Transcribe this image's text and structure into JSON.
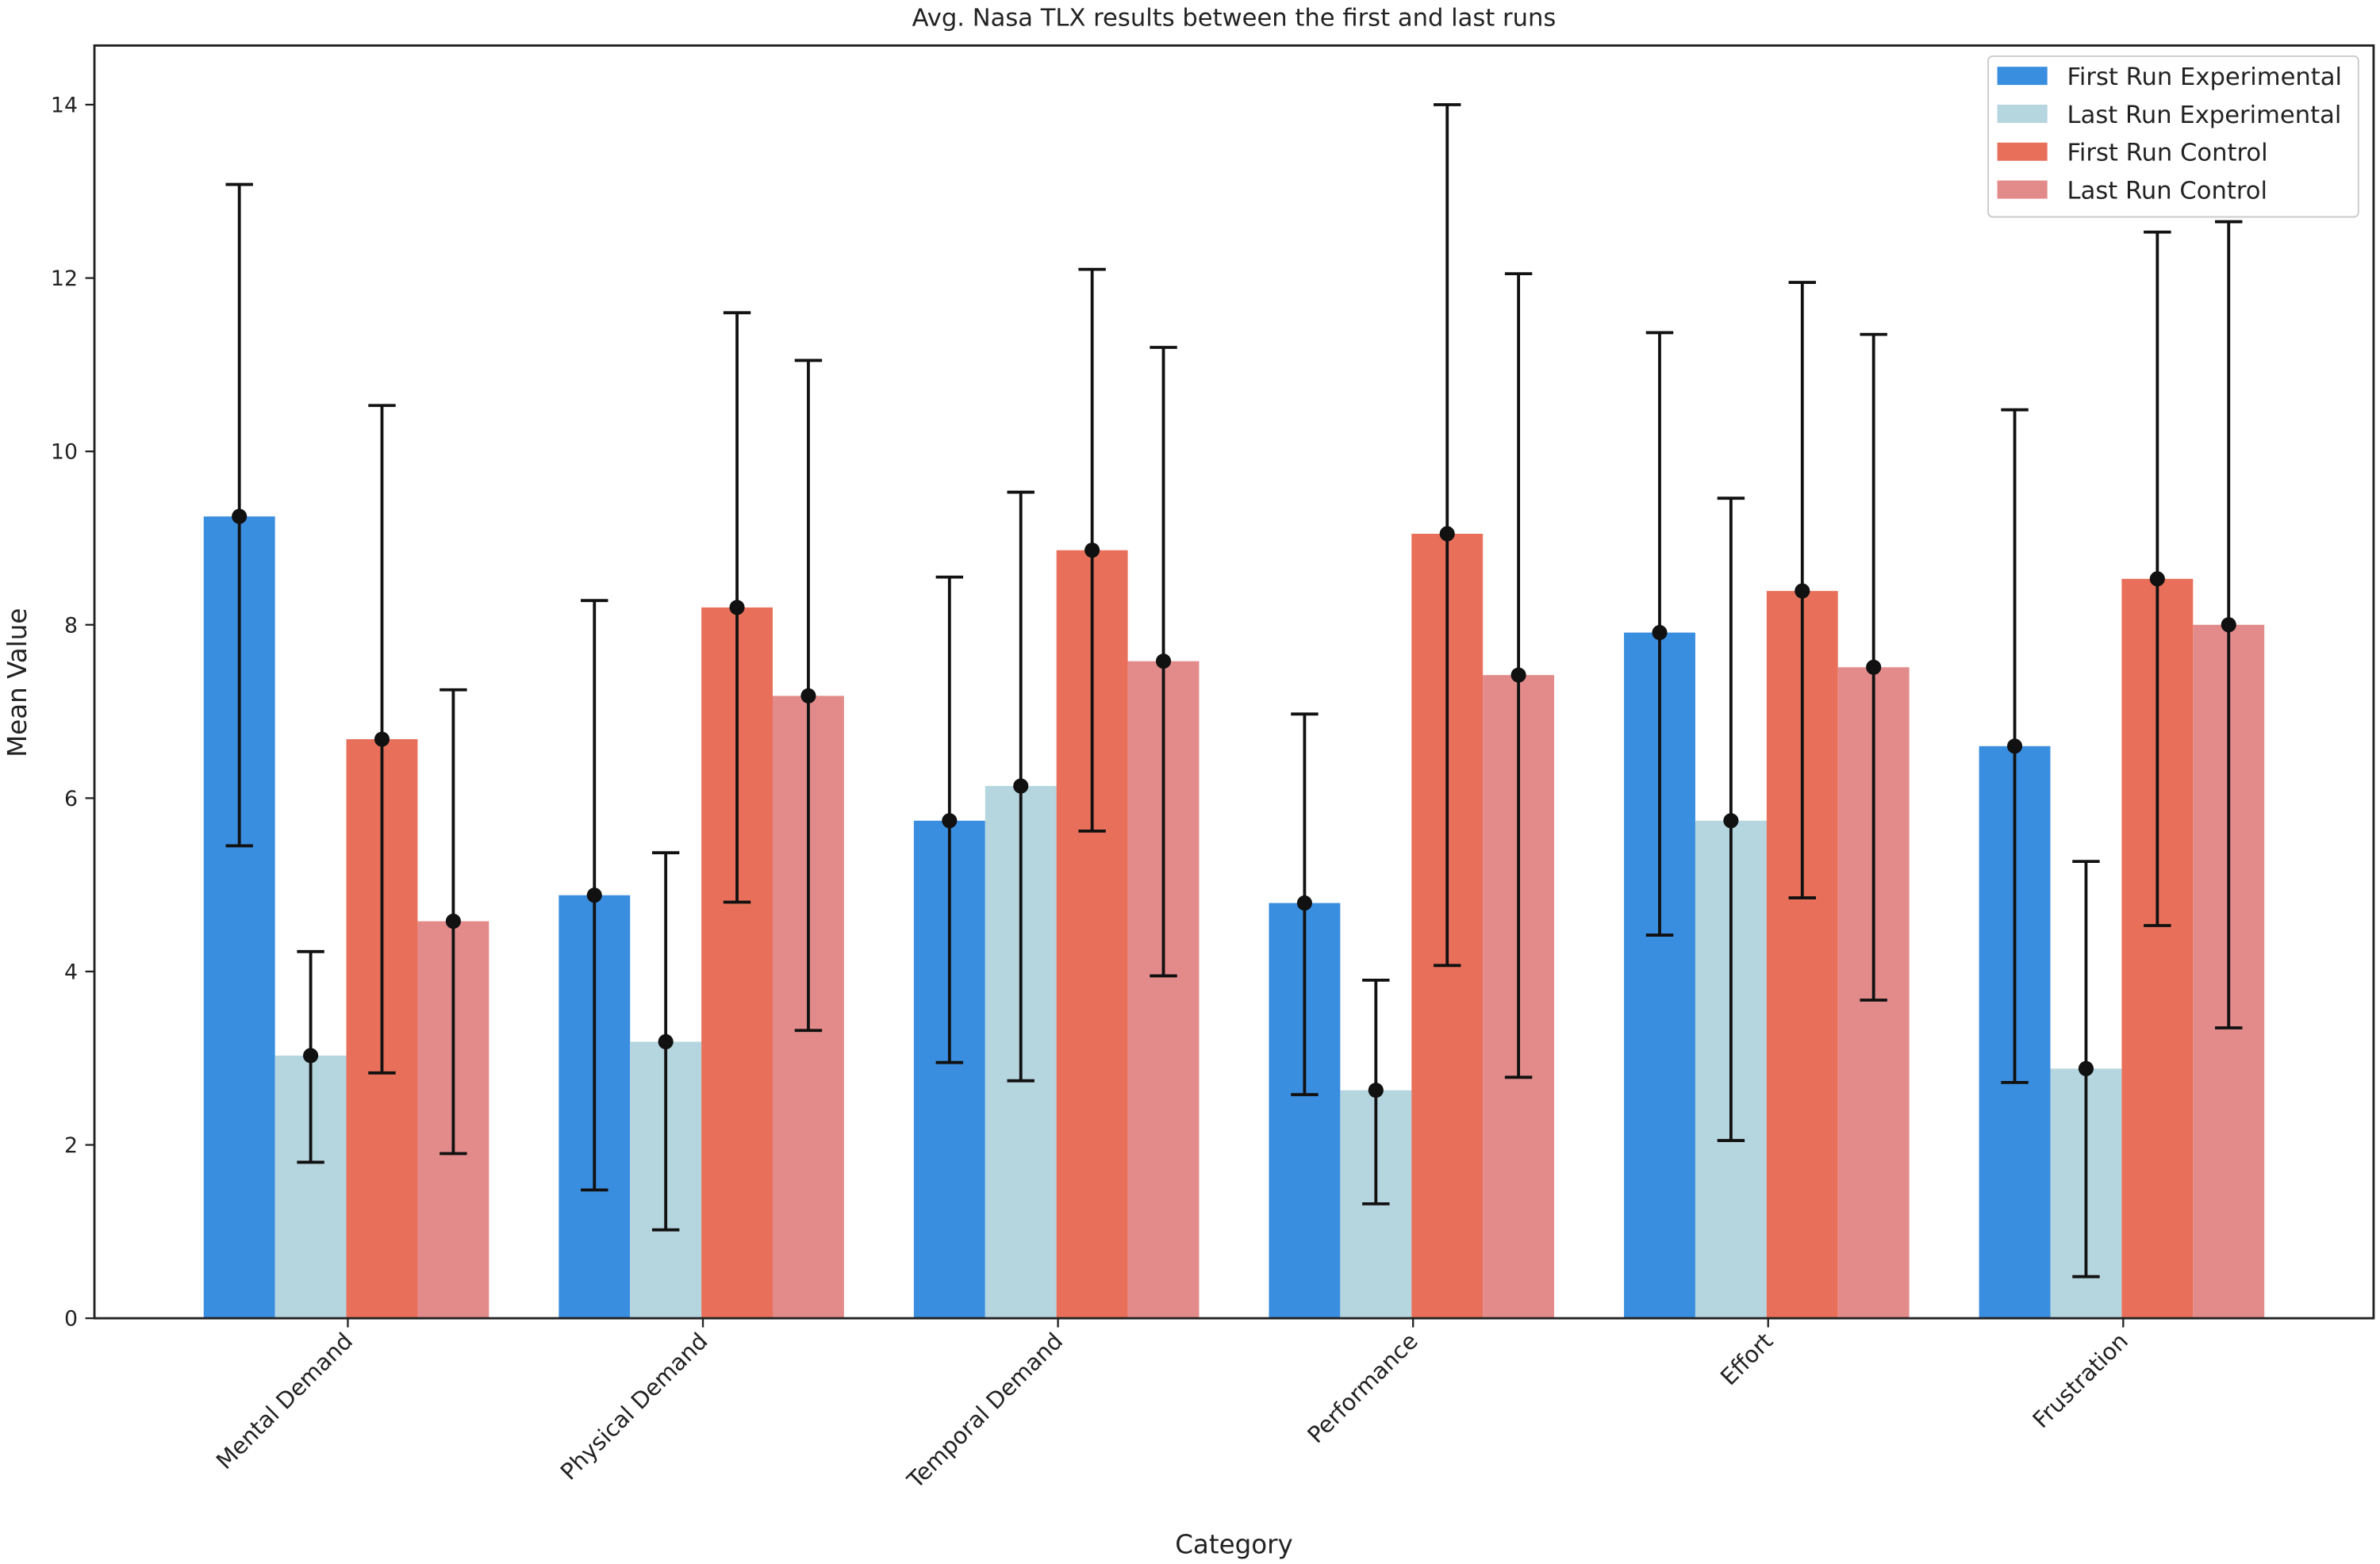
{
  "chart_data": {
    "type": "bar",
    "title": "Avg. Nasa TLX results between the first and last runs",
    "xlabel": "Category",
    "ylabel": "Mean Value",
    "ylim": [
      0,
      14.7
    ],
    "yticks": [
      0,
      2,
      4,
      6,
      8,
      10,
      12,
      14
    ],
    "grid": false,
    "legend_position": "top-right",
    "categories": [
      "Mental Demand",
      "Physical Demand",
      "Temporal Demand",
      "Performance",
      "Effort",
      "Frustration"
    ],
    "series": [
      {
        "name": "First Run Experimental",
        "color": "#3a8ee0",
        "values": [
          9.25,
          4.88,
          5.74,
          4.79,
          7.91,
          6.6
        ],
        "err_low": [
          5.45,
          1.48,
          2.95,
          2.58,
          4.42,
          2.72
        ],
        "err_high": [
          13.08,
          8.28,
          8.55,
          6.97,
          11.37,
          10.48
        ]
      },
      {
        "name": "Last Run Experimental",
        "color": "#b5d5df",
        "values": [
          3.03,
          3.19,
          6.14,
          2.63,
          5.74,
          2.88
        ],
        "err_low": [
          1.8,
          1.02,
          2.74,
          1.32,
          2.05,
          0.48
        ],
        "err_high": [
          4.23,
          5.37,
          9.53,
          3.9,
          9.46,
          5.27
        ]
      },
      {
        "name": "First Run Control",
        "color": "#e8705a",
        "values": [
          6.68,
          8.2,
          8.86,
          9.05,
          8.39,
          8.53
        ],
        "err_low": [
          2.83,
          4.8,
          5.62,
          4.07,
          4.85,
          4.53
        ],
        "err_high": [
          10.53,
          11.6,
          12.1,
          14.0,
          11.95,
          12.53
        ]
      },
      {
        "name": "Last Run Control",
        "color": "#e38b8b",
        "values": [
          4.58,
          7.18,
          7.58,
          7.42,
          7.51,
          8.0
        ],
        "err_low": [
          1.9,
          3.32,
          3.95,
          2.78,
          3.67,
          3.35
        ],
        "err_high": [
          7.25,
          11.05,
          11.2,
          12.05,
          11.35,
          12.65
        ]
      }
    ]
  }
}
